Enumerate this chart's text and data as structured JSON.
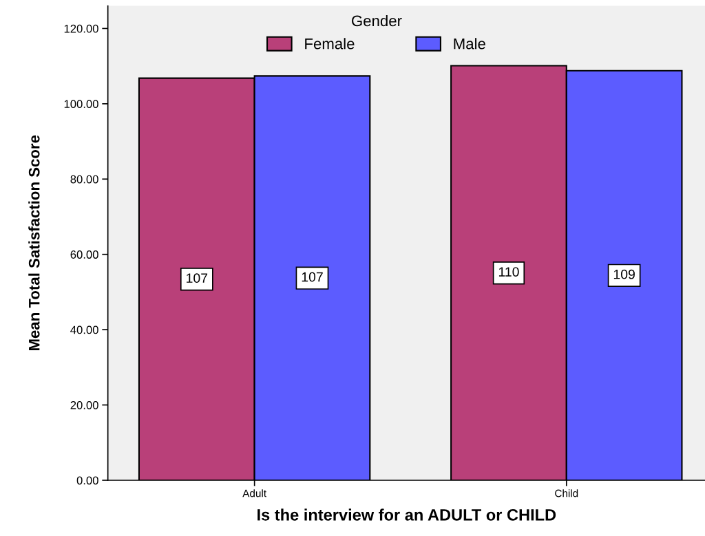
{
  "chart_data": {
    "type": "bar",
    "xlabel": "Is the interview for an ADULT or CHILD",
    "ylabel": "Mean Total Satisfaction Score",
    "legend_title": "Gender",
    "legend": "top",
    "categories": [
      "Adult",
      "Child"
    ],
    "series": [
      {
        "name": "Female",
        "color": "#b94079",
        "values": [
          106.8,
          110.1
        ],
        "value_labels": [
          "107",
          "110"
        ]
      },
      {
        "name": "Male",
        "color": "#5c5cff",
        "values": [
          107.4,
          108.8
        ],
        "value_labels": [
          "107",
          "109"
        ]
      }
    ],
    "ylim": [
      0,
      126
    ],
    "yticks": [
      {
        "value": 0,
        "label": "0.00"
      },
      {
        "value": 20,
        "label": "20.00"
      },
      {
        "value": 40,
        "label": "40.00"
      },
      {
        "value": 60,
        "label": "60.00"
      },
      {
        "value": 80,
        "label": "80.00"
      },
      {
        "value": 100,
        "label": "100.00"
      },
      {
        "value": 120,
        "label": "120.00"
      }
    ],
    "grid": false
  }
}
